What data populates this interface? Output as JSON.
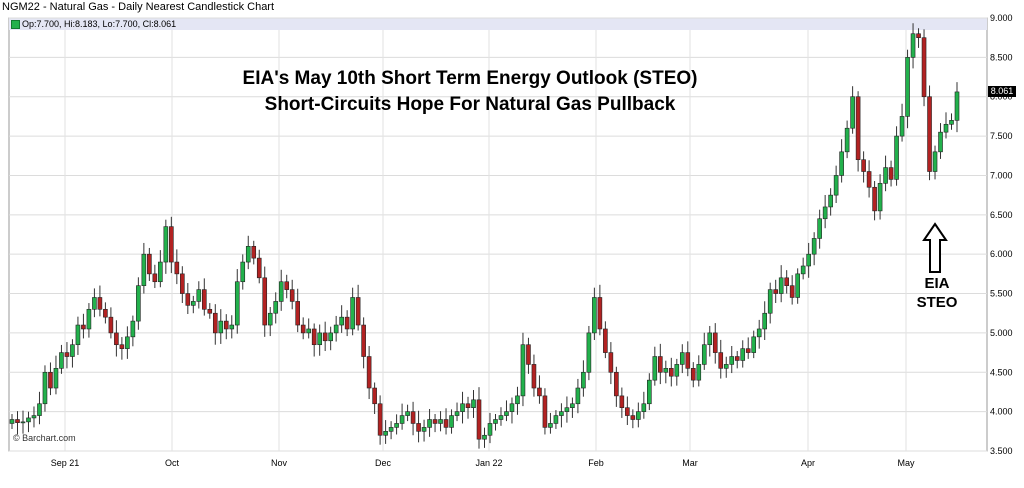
{
  "header": {
    "title": "NGM22 - Natural Gas - Daily Nearest Candlestick Chart"
  },
  "legend": {
    "ohlc": "Op:7.700, Hi:8.183, Lo:7.700, Cl:8.061"
  },
  "credit": "© Barchart.com",
  "chart_data": {
    "type": "candlestick",
    "title": "EIA's May 10th Short Term Energy Outlook (STEO)",
    "subtitle": "Short-Circuits Hope For Natural Gas Pullback",
    "y_ticks": [
      "3.500",
      "4.000",
      "4.500",
      "5.000",
      "5.500",
      "6.000",
      "6.500",
      "7.000",
      "7.500",
      "8.000",
      "8.500",
      "9.000"
    ],
    "ylim": [
      3.5,
      9.0
    ],
    "x_ticks": [
      "Sep 21",
      "Oct",
      "Nov",
      "Dec",
      "Jan 22",
      "Feb",
      "Mar",
      "Apr",
      "May"
    ],
    "last_price": "8.061",
    "annotation": [
      "EIA",
      "STEO"
    ],
    "colors": {
      "up": "#22b14c",
      "down": "#b22222"
    },
    "grid": true,
    "close": [
      3.9,
      3.86,
      3.87,
      3.92,
      3.95,
      4.1,
      4.5,
      4.3,
      4.55,
      4.75,
      4.7,
      4.85,
      5.1,
      5.05,
      5.3,
      5.45,
      5.3,
      5.2,
      5.0,
      4.85,
      4.8,
      4.95,
      5.15,
      5.6,
      6.0,
      5.75,
      5.65,
      5.9,
      6.35,
      5.9,
      5.75,
      5.5,
      5.35,
      5.4,
      5.55,
      5.3,
      5.25,
      5.0,
      5.15,
      5.05,
      5.1,
      5.65,
      5.9,
      6.1,
      5.95,
      5.7,
      5.1,
      5.25,
      5.4,
      5.65,
      5.55,
      5.4,
      5.1,
      5.0,
      5.05,
      4.85,
      5.0,
      4.9,
      5.0,
      5.1,
      5.2,
      5.05,
      5.45,
      5.1,
      4.7,
      4.3,
      4.1,
      3.7,
      3.75,
      3.8,
      3.85,
      3.95,
      4.0,
      3.85,
      3.75,
      3.8,
      3.9,
      3.85,
      3.9,
      3.8,
      3.95,
      4.0,
      4.1,
      4.05,
      4.15,
      3.65,
      3.7,
      3.85,
      3.9,
      3.95,
      4.0,
      4.1,
      4.2,
      4.85,
      4.6,
      4.3,
      4.2,
      3.8,
      3.85,
      3.95,
      4.0,
      4.05,
      4.1,
      4.3,
      4.5,
      5.0,
      5.45,
      5.05,
      4.75,
      4.5,
      4.2,
      4.05,
      3.95,
      3.9,
      4.0,
      4.1,
      4.4,
      4.7,
      4.5,
      4.55,
      4.45,
      4.6,
      4.75,
      4.55,
      4.4,
      4.6,
      4.85,
      5.0,
      4.75,
      4.55,
      4.6,
      4.7,
      4.65,
      4.8,
      4.75,
      4.95,
      5.05,
      5.25,
      5.55,
      5.5,
      5.7,
      5.6,
      5.45,
      5.75,
      5.85,
      6.0,
      6.2,
      6.45,
      6.6,
      6.75,
      7.0,
      7.3,
      7.6,
      8.0,
      7.2,
      7.05,
      6.85,
      6.55,
      6.9,
      7.1,
      6.95,
      7.5,
      7.75,
      8.5,
      8.8,
      8.75,
      8.0,
      7.05,
      7.3,
      7.55,
      7.65,
      7.7,
      8.061
    ]
  }
}
